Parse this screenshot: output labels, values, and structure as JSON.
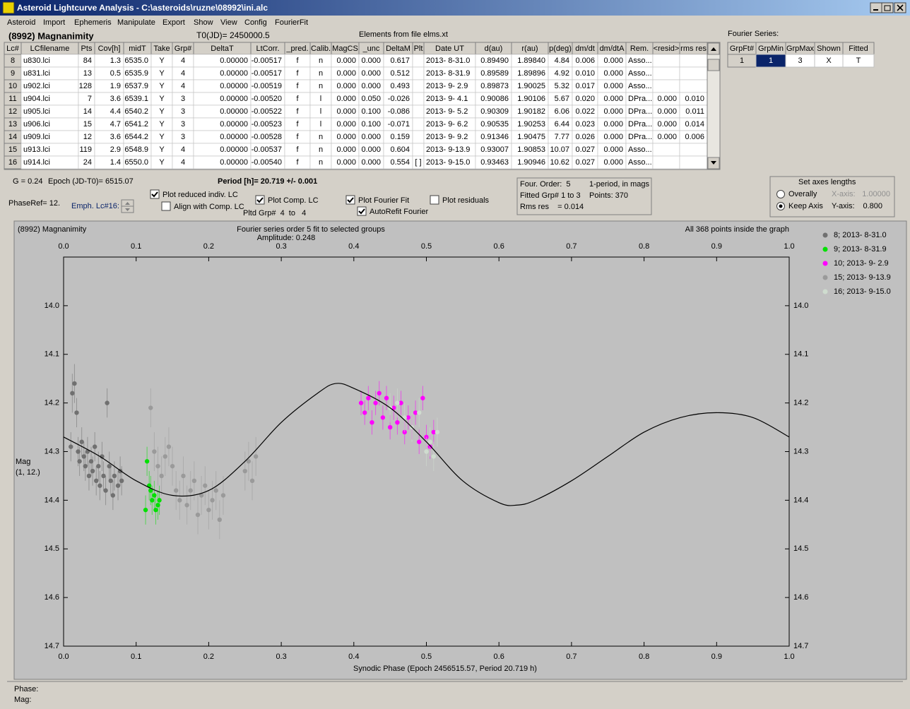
{
  "window": {
    "title": "Asteroid Lightcurve Analysis - C:\\asteroids\\ruzne\\08992\\ini.alc",
    "menu": [
      "Asteroid",
      "Import",
      "Ephemeris",
      "Manipulate",
      "Export",
      "Show",
      "View",
      "Config",
      "FourierFit"
    ]
  },
  "header": {
    "object": "(8992) Magnanimity",
    "t0": "T0(JD)= 2450000.5",
    "elements": "Elements from file elms.xt"
  },
  "table": {
    "columns": [
      "Lc#",
      "LCfilename",
      "Pts",
      "Cov[h]",
      "midT",
      "Take",
      "Grp#",
      "DeltaT",
      "LtCorr.",
      "_pred.",
      "Calib.",
      "MagCS",
      "_unc",
      "DeltaM",
      "Plt",
      "Date UT",
      "d(au)",
      "r(au)",
      "p(deg)",
      "dm/dt",
      "dm/dtA",
      "Rem.",
      "<resid>",
      "rms res"
    ],
    "rows": [
      [
        "8",
        "u830.lci",
        "84",
        "1.3",
        "6535.0",
        "Y",
        "4",
        "0.00000",
        "-0.00517",
        "f",
        "n",
        "0.000",
        "0.000",
        "0.617",
        null,
        "2013- 8-31.0",
        "0.89490",
        "1.89840",
        "4.84",
        "0.006",
        "0.000",
        "Asso...",
        null,
        null
      ],
      [
        "9",
        "u831.lci",
        "13",
        "0.5",
        "6535.9",
        "Y",
        "4",
        "0.00000",
        "-0.00517",
        "f",
        "n",
        "0.000",
        "0.000",
        "0.512",
        null,
        "2013- 8-31.9",
        "0.89589",
        "1.89896",
        "4.92",
        "0.010",
        "0.000",
        "Asso...",
        null,
        null
      ],
      [
        "10",
        "u902.lci",
        "128",
        "1.9",
        "6537.9",
        "Y",
        "4",
        "0.00000",
        "-0.00519",
        "f",
        "n",
        "0.000",
        "0.000",
        "0.493",
        null,
        "2013- 9- 2.9",
        "0.89873",
        "1.90025",
        "5.32",
        "0.017",
        "0.000",
        "Asso...",
        null,
        null
      ],
      [
        "11",
        "u904.lci",
        "7",
        "3.6",
        "6539.1",
        "Y",
        "3",
        "0.00000",
        "-0.00520",
        "f",
        "l",
        "0.000",
        "0.050",
        "-0.026",
        null,
        "2013- 9- 4.1",
        "0.90086",
        "1.90106",
        "5.67",
        "0.020",
        "0.000",
        "DPra...",
        "0.000",
        "0.010"
      ],
      [
        "12",
        "u905.lci",
        "14",
        "4.4",
        "6540.2",
        "Y",
        "3",
        "0.00000",
        "-0.00522",
        "f",
        "l",
        "0.000",
        "0.100",
        "-0.086",
        null,
        "2013- 9- 5.2",
        "0.90309",
        "1.90182",
        "6.06",
        "0.022",
        "0.000",
        "DPra...",
        "0.000",
        "0.011"
      ],
      [
        "13",
        "u906.lci",
        "15",
        "4.7",
        "6541.2",
        "Y",
        "3",
        "0.00000",
        "-0.00523",
        "f",
        "l",
        "0.000",
        "0.100",
        "-0.071",
        null,
        "2013- 9- 6.2",
        "0.90535",
        "1.90253",
        "6.44",
        "0.023",
        "0.000",
        "DPra...",
        "0.000",
        "0.014"
      ],
      [
        "14",
        "u909.lci",
        "12",
        "3.6",
        "6544.2",
        "Y",
        "3",
        "0.00000",
        "-0.00528",
        "f",
        "n",
        "0.000",
        "0.000",
        "0.159",
        null,
        "2013- 9- 9.2",
        "0.91346",
        "1.90475",
        "7.77",
        "0.026",
        "0.000",
        "DPra...",
        "0.000",
        "0.006"
      ],
      [
        "15",
        "u913.lci",
        "119",
        "2.9",
        "6548.9",
        "Y",
        "4",
        "0.00000",
        "-0.00537",
        "f",
        "n",
        "0.000",
        "0.000",
        "0.604",
        null,
        "2013- 9-13.9",
        "0.93007",
        "1.90853",
        "10.07",
        "0.027",
        "0.000",
        "Asso...",
        null,
        null
      ],
      [
        "16",
        "u914.lci",
        "24",
        "1.4",
        "6550.0",
        "Y",
        "4",
        "0.00000",
        "-0.00540",
        "f",
        "n",
        "0.000",
        "0.000",
        "0.554",
        "[ ]",
        "2013- 9-15.0",
        "0.93463",
        "1.90946",
        "10.62",
        "0.027",
        "0.000",
        "Asso...",
        null,
        null
      ]
    ]
  },
  "fourier_table": {
    "title": "Fourier Series:",
    "columns": [
      "GrpFt#",
      "GrpMin",
      "GrpMax",
      "Shown",
      "Fitted"
    ],
    "rows": [
      [
        "1",
        "1",
        "3",
        "X",
        "T"
      ]
    ]
  },
  "controls": {
    "g": "G = 0.24",
    "epoch": "Epoch (JD-T0)= 6515.07",
    "period": "Period [h]= 20.719 +/- 0.001",
    "phase_ref": "PhaseRef= 12.",
    "emph": "Emph. Lc#16:",
    "plotted_groups": "Pltd Grp#  4  to   4",
    "checkboxes": [
      {
        "label": "Plot reduced indiv. LC",
        "checked": true
      },
      {
        "label": "Align with Comp. LC",
        "checked": false
      },
      {
        "label": "Plot Comp. LC",
        "checked": true
      },
      {
        "label": "Plot Fourier Fit",
        "checked": true
      },
      {
        "label": "AutoRefit Fourier",
        "checked": true
      },
      {
        "label": "Plot residuals",
        "checked": false
      }
    ],
    "fit_info": [
      "Four. Order:  5",
      "1-period, in mags",
      "Fitted Grp# 1 to 3",
      "Points: 370",
      "Rms res    = 0.014"
    ],
    "axes": {
      "title": "Set axes lengths",
      "radios": [
        {
          "label": "Overally",
          "checked": false
        },
        {
          "label": "Keep Axis",
          "checked": true
        }
      ],
      "x_label": "X-axis:",
      "x_value": "1.00000",
      "y_label": "Y-axis:",
      "y_value": "0.800"
    }
  },
  "chart_data": {
    "type": "scatter",
    "title": "(8992) Magnanimity",
    "subtitle": "Fourier series order 5 fit to selected groups",
    "amplitude": "Amplitude: 0.248",
    "note": "All 368 points inside the graph",
    "y_label": [
      "Mag",
      "(1, 12.)"
    ],
    "x_label": "Synodic Phase (Epoch 2456515.57, Period 20.719 h)",
    "xlim": [
      0,
      1
    ],
    "xticks": [
      {
        "value": 0,
        "label": "0.0"
      },
      0.1,
      0.2,
      0.3,
      0.4,
      0.5,
      0.6,
      0.7,
      0.8,
      0.9,
      {
        "value": 1,
        "label": "1.0"
      }
    ],
    "ylim": [
      13.9,
      14.7
    ],
    "y_inverted": true,
    "yticks": [
      {
        "value": 14,
        "label": "14.0"
      },
      14.1,
      14.2,
      14.3,
      14.4,
      14.5,
      14.6,
      14.7
    ],
    "series": [
      {
        "name": "8; 2013- 8-31.0",
        "color": "#707070",
        "x": [
          0.01,
          0.012,
          0.015,
          0.018,
          0.02,
          0.022,
          0.025,
          0.028,
          0.03,
          0.033,
          0.035,
          0.038,
          0.04,
          0.043,
          0.045,
          0.048,
          0.05,
          0.053,
          0.055,
          0.058,
          0.06,
          0.063,
          0.065,
          0.068,
          0.07,
          0.075,
          0.078,
          0.08
        ],
        "values": [
          14.29,
          14.18,
          14.16,
          14.22,
          14.3,
          14.32,
          14.28,
          14.31,
          14.33,
          14.3,
          14.35,
          14.32,
          14.34,
          14.29,
          14.36,
          14.33,
          14.37,
          14.31,
          14.35,
          14.38,
          14.2,
          14.33,
          14.36,
          14.39,
          14.35,
          14.37,
          14.34,
          14.36
        ],
        "errors": [
          0.03,
          0.04,
          0.04,
          0.03,
          0.03,
          0.03,
          0.03,
          0.03,
          0.03,
          0.03,
          0.03,
          0.03,
          0.03,
          0.03,
          0.03,
          0.03,
          0.03,
          0.03,
          0.03,
          0.03,
          0.03,
          0.03,
          0.03,
          0.03,
          0.03,
          0.03,
          0.03,
          0.03
        ]
      },
      {
        "name": "9; 2013- 8-31.9",
        "color": "#00e000",
        "x": [
          0.113,
          0.115,
          0.118,
          0.12,
          0.122,
          0.125,
          0.127,
          0.13,
          0.132
        ],
        "values": [
          14.42,
          14.32,
          14.37,
          14.38,
          14.4,
          14.39,
          14.42,
          14.41,
          14.4
        ],
        "errors": [
          0.03,
          0.03,
          0.03,
          0.03,
          0.03,
          0.03,
          0.03,
          0.03,
          0.03
        ]
      },
      {
        "name": "10; 2013- 9- 2.9",
        "color": "#ff00ff",
        "x": [
          0.41,
          0.415,
          0.42,
          0.425,
          0.43,
          0.435,
          0.44,
          0.445,
          0.45,
          0.455,
          0.46,
          0.465,
          0.47,
          0.475,
          0.48,
          0.485,
          0.49,
          0.495,
          0.5,
          0.505,
          0.51
        ],
        "values": [
          14.2,
          14.22,
          14.19,
          14.24,
          14.2,
          14.18,
          14.23,
          14.19,
          14.25,
          14.21,
          14.24,
          14.2,
          14.26,
          14.23,
          14.25,
          14.22,
          14.28,
          14.19,
          14.27,
          14.29,
          14.26
        ],
        "errors": [
          0.025,
          0.025,
          0.025,
          0.025,
          0.025,
          0.025,
          0.025,
          0.025,
          0.025,
          0.025,
          0.025,
          0.025,
          0.025,
          0.025,
          0.025,
          0.025,
          0.025,
          0.025,
          0.025,
          0.025,
          0.025
        ]
      },
      {
        "name": "15; 2013- 9-13.9",
        "color": "#9a9a9a",
        "x": [
          0.12,
          0.125,
          0.13,
          0.135,
          0.14,
          0.145,
          0.15,
          0.155,
          0.16,
          0.165,
          0.17,
          0.175,
          0.18,
          0.185,
          0.19,
          0.195,
          0.2,
          0.205,
          0.21,
          0.215,
          0.22,
          0.25,
          0.255,
          0.26,
          0.265
        ],
        "values": [
          14.21,
          14.3,
          14.33,
          14.35,
          14.31,
          14.29,
          14.33,
          14.38,
          14.4,
          14.35,
          14.41,
          14.38,
          14.36,
          14.43,
          14.39,
          14.37,
          14.42,
          14.4,
          14.38,
          14.44,
          14.39,
          14.34,
          14.32,
          14.36,
          14.31
        ],
        "errors": [
          0.04,
          0.04,
          0.04,
          0.04,
          0.04,
          0.04,
          0.04,
          0.04,
          0.04,
          0.04,
          0.04,
          0.04,
          0.04,
          0.04,
          0.04,
          0.04,
          0.04,
          0.04,
          0.04,
          0.04,
          0.04,
          0.04,
          0.04,
          0.04,
          0.04
        ]
      },
      {
        "name": "16; 2013- 9-15.0",
        "color": "#cfdccf",
        "x": [
          0.45,
          0.46,
          0.47,
          0.48,
          0.49,
          0.5,
          0.505,
          0.51,
          0.515
        ],
        "values": [
          14.21,
          14.2,
          14.23,
          14.25,
          14.22,
          14.3,
          14.28,
          14.31,
          14.26
        ],
        "errors": [
          0.03,
          0.03,
          0.03,
          0.03,
          0.03,
          0.03,
          0.03,
          0.03,
          0.03
        ]
      }
    ],
    "fit": {
      "color": "#000000",
      "x": [
        0,
        0.05,
        0.1,
        0.15,
        0.2,
        0.25,
        0.3,
        0.35,
        0.375,
        0.4,
        0.45,
        0.5,
        0.55,
        0.6,
        0.625,
        0.65,
        0.7,
        0.75,
        0.8,
        0.85,
        0.9,
        0.95,
        1
      ],
      "values": [
        14.27,
        14.31,
        14.36,
        14.39,
        14.38,
        14.32,
        14.24,
        14.18,
        14.16,
        14.17,
        14.21,
        14.28,
        14.36,
        14.405,
        14.41,
        14.4,
        14.36,
        14.31,
        14.26,
        14.23,
        14.22,
        14.23,
        14.27
      ]
    }
  },
  "status": {
    "phase": "Phase:",
    "mag": "Mag:"
  }
}
